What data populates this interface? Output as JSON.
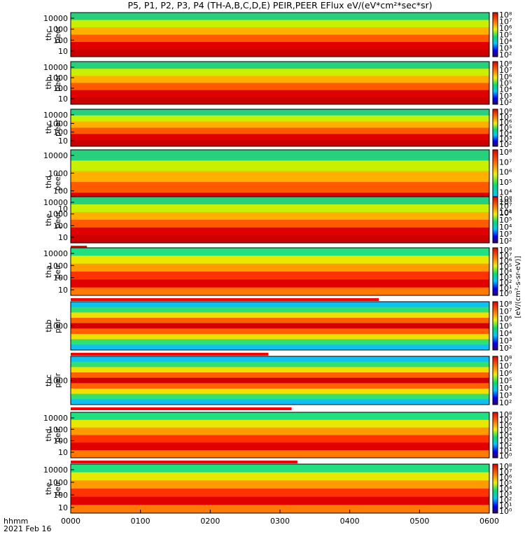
{
  "chart_data": {
    "type": "heatmap",
    "title": "P5, P1, P2, P3, P4 (TH-A,B,C,D,E) PEIR,PEER EFlux eV/(eV*cm²*sec*sr)",
    "x_axis": {
      "label_line1": "hhmm",
      "label_line2": "2021 Feb 16",
      "ticks": [
        "0000",
        "0100",
        "0200",
        "0300",
        "0400",
        "0500",
        "0600"
      ],
      "range_minutes": [
        0,
        360
      ]
    },
    "colorbar_label": "[eV/(cm²-s-sr-eV)]",
    "panels": [
      {
        "line1": "thc",
        "line2": "peer",
        "kind": "electron",
        "yticks": [
          "10000",
          "1000",
          "100",
          "10"
        ],
        "cticks": [
          "10⁸",
          "10⁷",
          "10⁶",
          "10⁵",
          "10⁴",
          "10³",
          "10²"
        ],
        "flag_end": null
      },
      {
        "line1": "thb",
        "line2": "peer",
        "kind": "electron",
        "yticks": [
          "10000",
          "1000",
          "100",
          "10"
        ],
        "cticks": [
          "10⁸",
          "10⁷",
          "10⁶",
          "10⁵",
          "10⁴",
          "10³",
          "10²"
        ],
        "flag_end": null
      },
      {
        "line1": "thc",
        "line2": "peer",
        "kind": "electron",
        "yticks": [
          "10000",
          "1000",
          "100",
          "10"
        ],
        "cticks": [
          "10⁸",
          "10⁷",
          "10⁶",
          "10⁵",
          "10⁴",
          "10³",
          "10²"
        ],
        "flag_end": null
      },
      {
        "line1": "thd",
        "line2": "peer",
        "kind": "electron",
        "yticks": [
          "10000",
          "1000",
          "100",
          "10"
        ],
        "cticks": [
          "10⁸",
          "10⁷",
          "10⁶",
          "10⁵",
          "10⁴",
          "10³",
          "10²"
        ],
        "flag_end": null
      },
      {
        "line1": "the",
        "line2": "peer",
        "kind": "electron",
        "yticks": [
          "10000",
          "1000",
          "100",
          "10"
        ],
        "cticks": [
          "10⁸",
          "10⁷",
          "10⁶",
          "10⁵",
          "10⁴",
          "10³",
          "10²"
        ],
        "flag_end": "0014"
      },
      {
        "line1": "tha",
        "line2": "peir",
        "kind": "ion",
        "yticks": [
          "10000",
          "1000",
          "100",
          "10"
        ],
        "cticks": [
          "10⁸",
          "10⁷",
          "10⁶",
          "10⁵",
          "10⁴",
          "10³",
          "10²",
          "10¹",
          "10⁰"
        ],
        "flag_end": "0425"
      },
      {
        "line1": "thb",
        "line2": "peir",
        "kind": "ion2",
        "yticks": [
          "1000"
        ],
        "cticks": [
          "10⁸",
          "10⁷",
          "10⁶",
          "10⁵",
          "10⁴",
          "10³",
          "10²"
        ],
        "flag_end": "0250"
      },
      {
        "line1": "thc",
        "line2": "peir",
        "kind": "ion2",
        "yticks": [
          "1000"
        ],
        "cticks": [
          "10⁸",
          "10⁷",
          "10⁶",
          "10⁵",
          "10⁴",
          "10³",
          "10²"
        ],
        "flag_end": "0310"
      },
      {
        "line1": "thd",
        "line2": "peir",
        "kind": "ion",
        "yticks": [
          "10000",
          "1000",
          "100",
          "10"
        ],
        "cticks": [
          "10⁸",
          "10⁷",
          "10⁶",
          "10⁵",
          "10⁴",
          "10³",
          "10²",
          "10¹",
          "10⁰"
        ],
        "flag_end": "0315"
      },
      {
        "line1": "the",
        "line2": "peir",
        "kind": "ion",
        "yticks": [
          "10000",
          "1000",
          "100",
          "10"
        ],
        "cticks": [
          "10⁸",
          "10⁷",
          "10⁶",
          "10⁵",
          "10⁴",
          "10³",
          "10²",
          "10¹",
          "10⁰"
        ],
        "flag_end": null
      }
    ]
  }
}
